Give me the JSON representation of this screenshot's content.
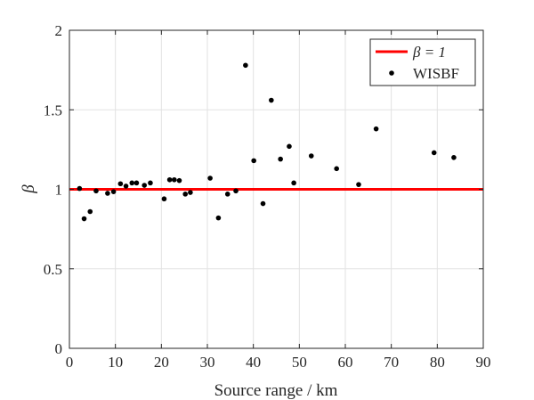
{
  "chart_data": {
    "type": "scatter",
    "title": "",
    "xlabel": "Source range / km",
    "ylabel": "β",
    "xlim": [
      0,
      90
    ],
    "ylim": [
      0,
      2
    ],
    "xticks": [
      0,
      10,
      20,
      30,
      40,
      50,
      60,
      70,
      80,
      90
    ],
    "yticks": [
      0,
      0.5,
      1,
      1.5,
      2
    ],
    "ytick_labels": [
      "0",
      "0.5",
      "1",
      "1.5",
      "2"
    ],
    "grid": true,
    "legend_position": "top-right",
    "reference_line": {
      "name": "β = 1",
      "y": 1,
      "color": "#ff0000"
    },
    "series": [
      {
        "name": "WISBF",
        "color": "#000000",
        "x": [
          2.2,
          3.2,
          4.5,
          5.8,
          8.3,
          9.6,
          11.1,
          12.3,
          13.6,
          14.6,
          16.3,
          17.6,
          20.6,
          21.8,
          22.8,
          23.9,
          25.2,
          26.3,
          30.6,
          32.4,
          34.4,
          36.2,
          38.3,
          40.1,
          42.1,
          43.9,
          45.9,
          47.8,
          48.8,
          52.6,
          58.1,
          62.9,
          66.7,
          79.3,
          83.6
        ],
        "y": [
          1.005,
          0.815,
          0.86,
          0.99,
          0.975,
          0.985,
          1.035,
          1.02,
          1.04,
          1.04,
          1.025,
          1.04,
          0.94,
          1.06,
          1.06,
          1.055,
          0.97,
          0.98,
          1.07,
          0.82,
          0.97,
          0.99,
          1.78,
          1.18,
          0.91,
          1.56,
          1.19,
          1.27,
          1.04,
          1.21,
          1.13,
          1.03,
          1.38,
          1.23,
          1.2
        ]
      }
    ]
  }
}
